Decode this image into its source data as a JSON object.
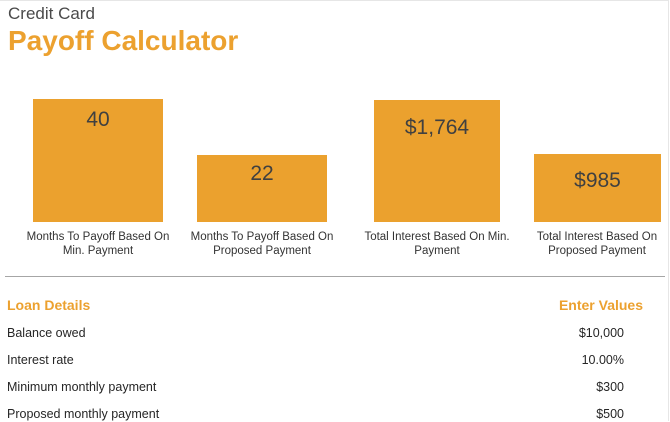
{
  "header": {
    "title_small": "Credit Card",
    "title_big": "Payoff Calculator"
  },
  "colors": {
    "accent": "#ECA12F",
    "tile": "#EBA12E"
  },
  "tiles": [
    {
      "value": "40",
      "label": "Months To Payoff Based On Min. Payment",
      "level": 1.0
    },
    {
      "value": "22",
      "label": "Months To Payoff Based On Proposed Payment",
      "level": 0.55
    },
    {
      "value": "$1,764",
      "label": "Total Interest Based On Min. Payment",
      "level": 1.0
    },
    {
      "value": "$985",
      "label": "Total Interest Based On Proposed Payment",
      "level": 0.56
    }
  ],
  "loan": {
    "section_title": "Loan Details",
    "values_title": "Enter Values",
    "rows": [
      {
        "label": "Balance owed",
        "value": "$10,000"
      },
      {
        "label": "Interest rate",
        "value": "10.00%"
      },
      {
        "label": "Minimum monthly payment",
        "value": "$300"
      },
      {
        "label": "Proposed monthly payment",
        "value": "$500"
      }
    ]
  }
}
